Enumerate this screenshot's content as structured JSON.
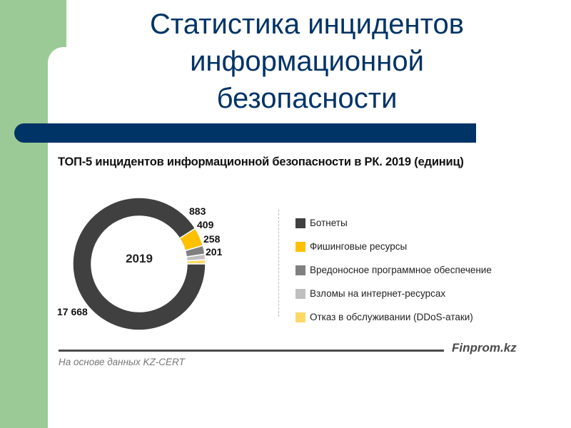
{
  "slide": {
    "title": "Статистика инцидентов информационной безопасности",
    "title_lines": [
      "Статистика инцидентов",
      "информационной",
      "безопасности"
    ],
    "colors": {
      "green": "#9bca96",
      "navy": "#003366"
    }
  },
  "chart_data": {
    "type": "pie",
    "variant": "donut",
    "title": "ТОП-5 инцидентов информационной безопасности в РК. 2019 (единиц)",
    "center_label": "2019",
    "categories": [
      "Ботнеты",
      "Фишинговые ресурсы",
      "Вредоносное программное обеспечение",
      "Взломы на интернет-ресурсах",
      "Отказ в обслуживании (DDoS-атаки)"
    ],
    "values": [
      17668,
      883,
      409,
      258,
      201
    ],
    "value_labels": [
      "17 668",
      "883",
      "409",
      "258",
      "201"
    ],
    "colors": [
      "#404040",
      "#ffc000",
      "#808080",
      "#bfbfbf",
      "#ffd966"
    ],
    "legend_position": "right",
    "source": "На основе данных KZ-CERT",
    "brand": "Finprom.kz"
  }
}
